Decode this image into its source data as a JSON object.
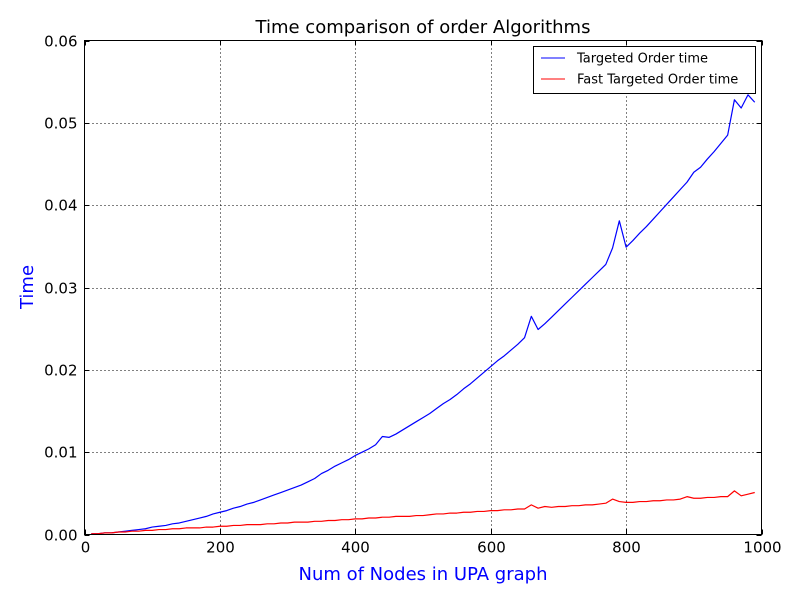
{
  "chart_data": {
    "type": "line",
    "title": "Time comparison of order Algorithms",
    "xlabel": "Num of Nodes in UPA graph",
    "ylabel": "Time",
    "xlim": [
      0,
      1000
    ],
    "ylim": [
      0,
      0.06
    ],
    "xticks": [
      0,
      200,
      400,
      600,
      800,
      1000
    ],
    "xtick_labels": [
      "0",
      "200",
      "400",
      "600",
      "800",
      "1000"
    ],
    "yticks": [
      0.0,
      0.01,
      0.02,
      0.03,
      0.04,
      0.05,
      0.06
    ],
    "ytick_labels": [
      "0.00",
      "0.01",
      "0.02",
      "0.03",
      "0.04",
      "0.05",
      "0.06"
    ],
    "grid": true,
    "legend_position": "top-right",
    "label_color": "#0000ff",
    "series": [
      {
        "name": "Targeted Order time",
        "color": "#0000ff",
        "points": [
          [
            10,
            0.0001
          ],
          [
            20,
            0.0001
          ],
          [
            30,
            0.0002
          ],
          [
            40,
            0.0002
          ],
          [
            50,
            0.0003
          ],
          [
            60,
            0.0004
          ],
          [
            70,
            0.0005
          ],
          [
            80,
            0.0006
          ],
          [
            90,
            0.0007
          ],
          [
            100,
            0.0009
          ],
          [
            110,
            0.001
          ],
          [
            120,
            0.0011
          ],
          [
            130,
            0.0013
          ],
          [
            140,
            0.0014
          ],
          [
            150,
            0.0016
          ],
          [
            160,
            0.0018
          ],
          [
            170,
            0.002
          ],
          [
            180,
            0.0022
          ],
          [
            190,
            0.0025
          ],
          [
            200,
            0.0027
          ],
          [
            210,
            0.0029
          ],
          [
            220,
            0.0032
          ],
          [
            230,
            0.0034
          ],
          [
            240,
            0.0037
          ],
          [
            250,
            0.0039
          ],
          [
            260,
            0.0042
          ],
          [
            270,
            0.0045
          ],
          [
            280,
            0.0048
          ],
          [
            290,
            0.0051
          ],
          [
            300,
            0.0054
          ],
          [
            310,
            0.0057
          ],
          [
            320,
            0.006
          ],
          [
            330,
            0.0064
          ],
          [
            340,
            0.0068
          ],
          [
            350,
            0.0074
          ],
          [
            360,
            0.0078
          ],
          [
            370,
            0.0083
          ],
          [
            380,
            0.0087
          ],
          [
            390,
            0.0091
          ],
          [
            400,
            0.0096
          ],
          [
            410,
            0.01
          ],
          [
            420,
            0.0104
          ],
          [
            430,
            0.0109
          ],
          [
            440,
            0.0119
          ],
          [
            450,
            0.0118
          ],
          [
            460,
            0.0122
          ],
          [
            470,
            0.0127
          ],
          [
            480,
            0.0132
          ],
          [
            490,
            0.0137
          ],
          [
            500,
            0.0142
          ],
          [
            510,
            0.0147
          ],
          [
            520,
            0.0153
          ],
          [
            530,
            0.0159
          ],
          [
            540,
            0.0164
          ],
          [
            550,
            0.017
          ],
          [
            560,
            0.0177
          ],
          [
            570,
            0.0183
          ],
          [
            580,
            0.019
          ],
          [
            590,
            0.0197
          ],
          [
            600,
            0.0204
          ],
          [
            610,
            0.0211
          ],
          [
            620,
            0.0217
          ],
          [
            630,
            0.0224
          ],
          [
            640,
            0.0231
          ],
          [
            650,
            0.0239
          ],
          [
            660,
            0.0265
          ],
          [
            670,
            0.0249
          ],
          [
            680,
            0.0256
          ],
          [
            690,
            0.0264
          ],
          [
            700,
            0.0272
          ],
          [
            710,
            0.028
          ],
          [
            720,
            0.0288
          ],
          [
            730,
            0.0296
          ],
          [
            740,
            0.0304
          ],
          [
            750,
            0.0312
          ],
          [
            760,
            0.032
          ],
          [
            770,
            0.0328
          ],
          [
            780,
            0.0348
          ],
          [
            790,
            0.0381
          ],
          [
            800,
            0.0349
          ],
          [
            810,
            0.0357
          ],
          [
            820,
            0.0366
          ],
          [
            830,
            0.0374
          ],
          [
            840,
            0.0383
          ],
          [
            850,
            0.0392
          ],
          [
            860,
            0.0401
          ],
          [
            870,
            0.041
          ],
          [
            880,
            0.0419
          ],
          [
            890,
            0.0428
          ],
          [
            900,
            0.044
          ],
          [
            910,
            0.0446
          ],
          [
            920,
            0.0456
          ],
          [
            930,
            0.0465
          ],
          [
            940,
            0.0475
          ],
          [
            950,
            0.0485
          ],
          [
            960,
            0.0528
          ],
          [
            970,
            0.0518
          ],
          [
            980,
            0.0534
          ],
          [
            990,
            0.0525
          ]
        ]
      },
      {
        "name": "Fast Targeted Order time",
        "color": "#ff0000",
        "points": [
          [
            10,
            0.0001
          ],
          [
            20,
            0.0001
          ],
          [
            30,
            0.0002
          ],
          [
            40,
            0.0002
          ],
          [
            50,
            0.0003
          ],
          [
            60,
            0.0003
          ],
          [
            70,
            0.0004
          ],
          [
            80,
            0.0004
          ],
          [
            90,
            0.0005
          ],
          [
            100,
            0.0005
          ],
          [
            110,
            0.0006
          ],
          [
            120,
            0.0006
          ],
          [
            130,
            0.0007
          ],
          [
            140,
            0.0007
          ],
          [
            150,
            0.0008
          ],
          [
            160,
            0.0008
          ],
          [
            170,
            0.0008
          ],
          [
            180,
            0.0009
          ],
          [
            190,
            0.0009
          ],
          [
            200,
            0.001
          ],
          [
            210,
            0.001
          ],
          [
            220,
            0.0011
          ],
          [
            230,
            0.0011
          ],
          [
            240,
            0.0012
          ],
          [
            250,
            0.0012
          ],
          [
            260,
            0.0012
          ],
          [
            270,
            0.0013
          ],
          [
            280,
            0.0013
          ],
          [
            290,
            0.0014
          ],
          [
            300,
            0.0014
          ],
          [
            310,
            0.0015
          ],
          [
            320,
            0.0015
          ],
          [
            330,
            0.0015
          ],
          [
            340,
            0.0016
          ],
          [
            350,
            0.0016
          ],
          [
            360,
            0.0017
          ],
          [
            370,
            0.0017
          ],
          [
            380,
            0.0018
          ],
          [
            390,
            0.0018
          ],
          [
            400,
            0.0019
          ],
          [
            410,
            0.0019
          ],
          [
            420,
            0.002
          ],
          [
            430,
            0.002
          ],
          [
            440,
            0.0021
          ],
          [
            450,
            0.0021
          ],
          [
            460,
            0.0022
          ],
          [
            470,
            0.0022
          ],
          [
            480,
            0.0022
          ],
          [
            490,
            0.0023
          ],
          [
            500,
            0.0023
          ],
          [
            510,
            0.0024
          ],
          [
            520,
            0.0025
          ],
          [
            530,
            0.0025
          ],
          [
            540,
            0.0026
          ],
          [
            550,
            0.0026
          ],
          [
            560,
            0.0027
          ],
          [
            570,
            0.0027
          ],
          [
            580,
            0.0028
          ],
          [
            590,
            0.0028
          ],
          [
            600,
            0.0029
          ],
          [
            610,
            0.0029
          ],
          [
            620,
            0.003
          ],
          [
            630,
            0.003
          ],
          [
            640,
            0.0031
          ],
          [
            650,
            0.0031
          ],
          [
            660,
            0.0036
          ],
          [
            670,
            0.0032
          ],
          [
            680,
            0.0034
          ],
          [
            690,
            0.0033
          ],
          [
            700,
            0.0034
          ],
          [
            710,
            0.0034
          ],
          [
            720,
            0.0035
          ],
          [
            730,
            0.0035
          ],
          [
            740,
            0.0036
          ],
          [
            750,
            0.0036
          ],
          [
            760,
            0.0037
          ],
          [
            770,
            0.0038
          ],
          [
            780,
            0.0043
          ],
          [
            790,
            0.004
          ],
          [
            800,
            0.0039
          ],
          [
            810,
            0.0039
          ],
          [
            820,
            0.004
          ],
          [
            830,
            0.004
          ],
          [
            840,
            0.0041
          ],
          [
            850,
            0.0041
          ],
          [
            860,
            0.0042
          ],
          [
            870,
            0.0042
          ],
          [
            880,
            0.0043
          ],
          [
            890,
            0.0046
          ],
          [
            900,
            0.0044
          ],
          [
            910,
            0.0044
          ],
          [
            920,
            0.0045
          ],
          [
            930,
            0.0045
          ],
          [
            940,
            0.0046
          ],
          [
            950,
            0.0046
          ],
          [
            960,
            0.0053
          ],
          [
            970,
            0.0047
          ],
          [
            980,
            0.0049
          ],
          [
            990,
            0.0051
          ]
        ]
      }
    ]
  }
}
